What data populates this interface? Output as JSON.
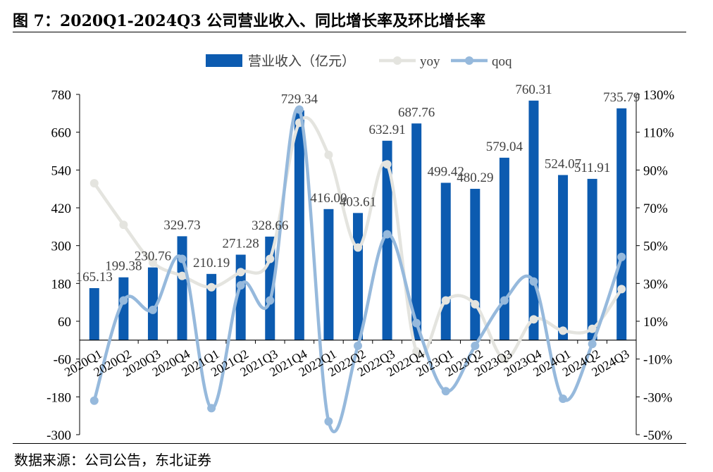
{
  "header": {
    "title": "图 7：2020Q1-2024Q3 公司营业收入、同比增长率及环比增长率"
  },
  "footer": {
    "source": "数据来源：公司公告，东北证券"
  },
  "colors": {
    "bar": "#0C5BB0",
    "yoy": "#E4E4DF",
    "qoq": "#96B9DC",
    "axis": "#000000"
  },
  "chart_data": {
    "type": "bar",
    "categories": [
      "2020Q1",
      "2020Q2",
      "2020Q3",
      "2020Q4",
      "2021Q1",
      "2021Q2",
      "2021Q3",
      "2021Q4",
      "2022Q1",
      "2022Q2",
      "2022Q3",
      "2022Q4",
      "2023Q1",
      "2023Q2",
      "2023Q3",
      "2023Q4",
      "2024Q1",
      "2024Q2",
      "2024Q3"
    ],
    "series": [
      {
        "name": "营业收入（亿元）",
        "type": "bar",
        "axis": "left",
        "values": [
          165.13,
          199.38,
          230.76,
          329.73,
          210.19,
          271.28,
          328.66,
          729.34,
          416.0,
          403.61,
          632.91,
          687.76,
          499.42,
          480.29,
          579.04,
          760.31,
          524.07,
          511.91,
          735.79
        ],
        "labels": [
          "165.13",
          "199.38",
          "230.76",
          "329.73",
          "210.19",
          "271.28",
          "328.66",
          "729.34",
          "416.00",
          "403.61",
          "632.91",
          "687.76",
          "499.42",
          "480.29",
          "579.04",
          "760.31",
          "524.07",
          "511.91",
          "735.79"
        ]
      },
      {
        "name": "yoy",
        "type": "line",
        "axis": "right",
        "values": [
          83,
          61,
          41,
          34,
          28,
          36,
          43,
          115,
          98,
          49,
          93,
          -6,
          21,
          19,
          -10,
          11,
          5,
          6,
          27
        ]
      },
      {
        "name": "qoq",
        "type": "line",
        "axis": "right",
        "values": [
          -32,
          21,
          16,
          43,
          -36,
          29,
          21,
          122,
          -43,
          -3,
          56,
          9,
          -27,
          -3,
          21,
          31,
          -31,
          -2,
          44
        ]
      }
    ],
    "y_left": {
      "ylim": [
        -300,
        780
      ],
      "ticks": [
        780,
        660,
        540,
        420,
        300,
        180,
        60,
        -60,
        -180,
        -300
      ],
      "tick_labels": [
        "780",
        "660",
        "540",
        "420",
        "300",
        "180",
        "60",
        "-60",
        "-180",
        "-300"
      ]
    },
    "y_right": {
      "ylim": [
        -50,
        130
      ],
      "ticks": [
        130,
        110,
        90,
        70,
        50,
        30,
        10,
        -10,
        -30,
        -50
      ],
      "tick_labels": [
        "130%",
        "110%",
        "90%",
        "70%",
        "50%",
        "30%",
        "10%",
        "-10%",
        "-30%",
        "-50%"
      ]
    },
    "legend_placement": "top",
    "grid": false
  }
}
